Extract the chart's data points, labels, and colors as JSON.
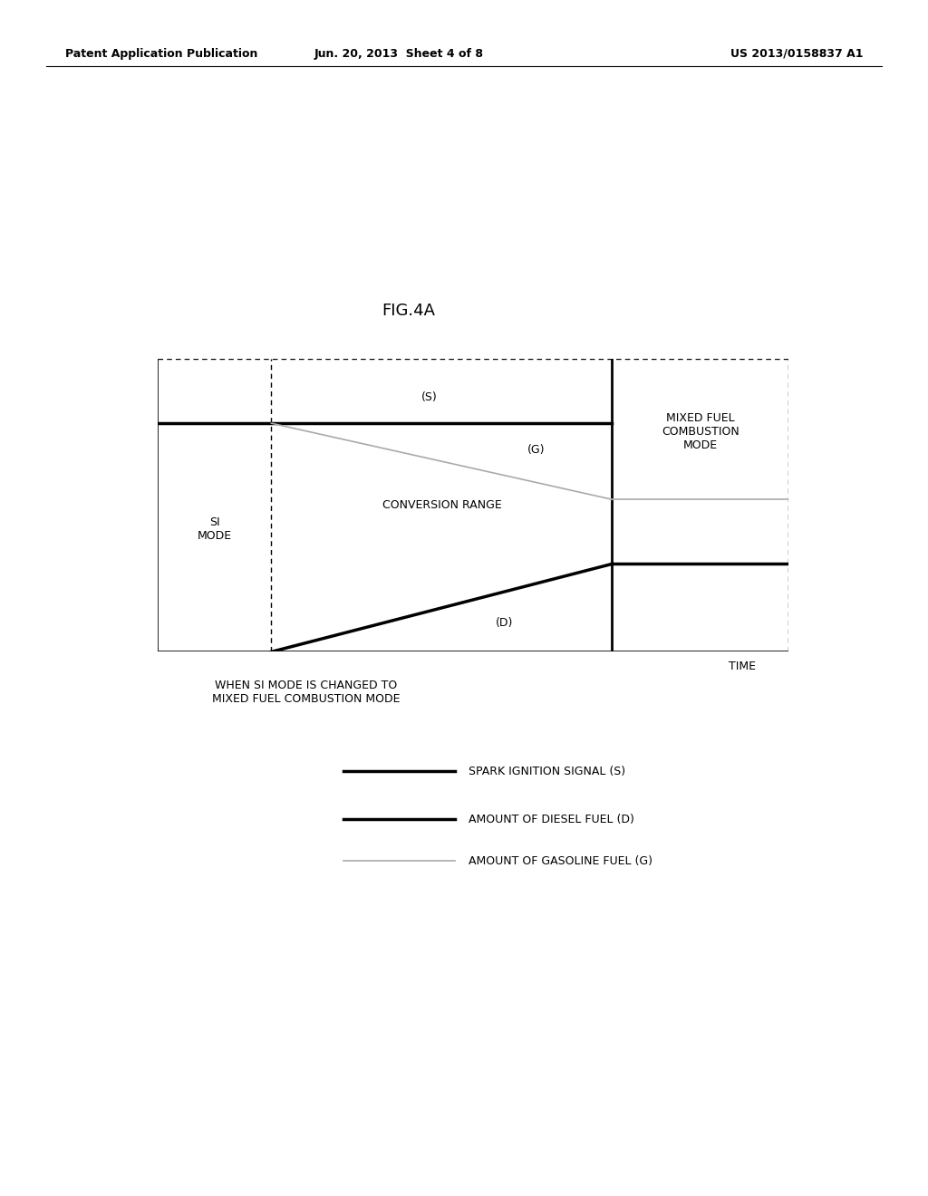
{
  "title": "FIG.4A",
  "background_color": "#ffffff",
  "patent_header_left": "Patent Application Publication",
  "patent_header_center": "Jun. 20, 2013  Sheet 4 of 8",
  "patent_header_right": "US 2013/0158837 A1",
  "xlabel_note": "WHEN SI MODE IS CHANGED TO\nMIXED FUEL COMBUSTION MODE",
  "xlabel_time": "TIME",
  "label_si_mode": "SI\nMODE",
  "label_conversion_range": "CONVERSION RANGE",
  "label_mixed_fuel": "MIXED FUEL\nCOMBUSTION\nMODE",
  "label_S": "(S)",
  "label_G": "(G)",
  "label_D": "(D)",
  "legend_S": "SPARK IGNITION SIGNAL (S)",
  "legend_D": "AMOUNT OF DIESEL FUEL (D)",
  "legend_G": "AMOUNT OF GASOLINE FUEL (G)",
  "color_S": "#000000",
  "color_D": "#000000",
  "color_G": "#aaaaaa",
  "linewidth_S": 2.5,
  "linewidth_D": 2.5,
  "linewidth_G": 1.2,
  "fig_title_fontsize": 13,
  "header_fontsize": 9,
  "label_fontsize": 9,
  "legend_fontsize": 9
}
